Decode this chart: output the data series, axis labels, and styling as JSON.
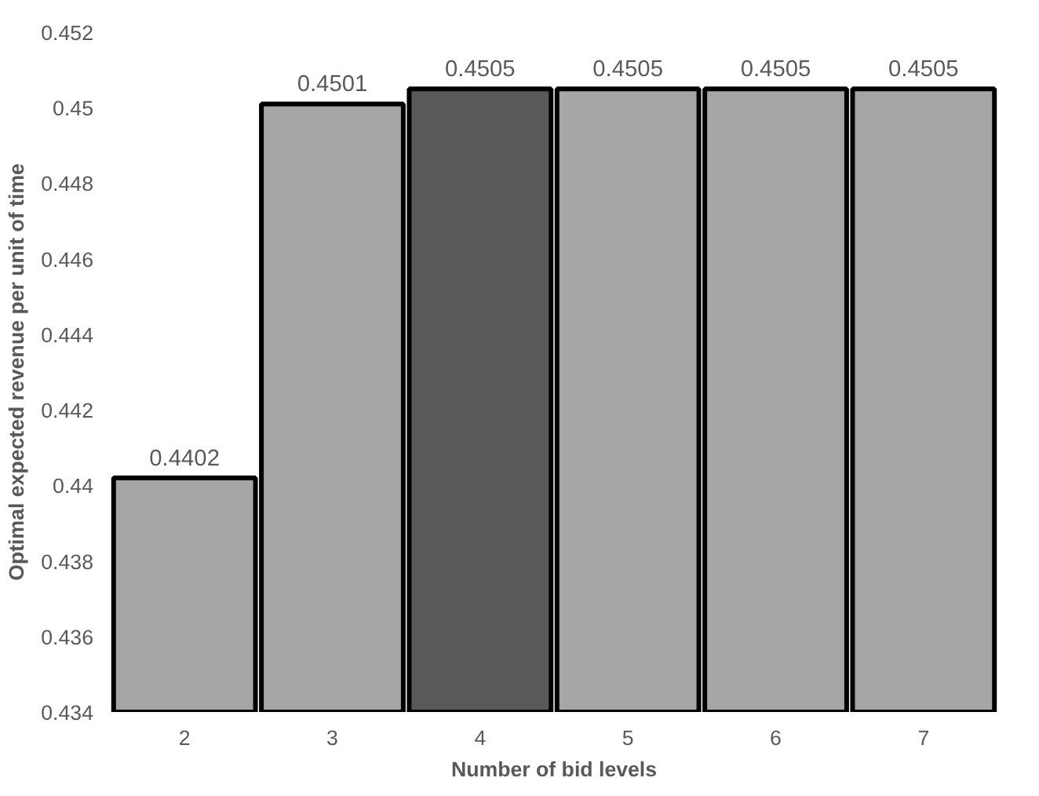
{
  "chart_data": {
    "type": "bar",
    "xlabel": "Number of bid levels",
    "ylabel": "Optimal expected revenue per unit of time",
    "categories": [
      "2",
      "3",
      "4",
      "5",
      "6",
      "7"
    ],
    "values": [
      0.4402,
      0.4501,
      0.4505,
      0.4505,
      0.4505,
      0.4505
    ],
    "colors": [
      "#a6a6a6",
      "#a6a6a6",
      "#595959",
      "#a6a6a6",
      "#a6a6a6",
      "#a6a6a6"
    ],
    "ylim": [
      0.434,
      0.452
    ],
    "yticks": [
      0.434,
      0.436,
      0.438,
      0.44,
      0.442,
      0.444,
      0.446,
      0.448,
      0.45,
      0.452
    ],
    "data_labels": true,
    "grid": false
  }
}
